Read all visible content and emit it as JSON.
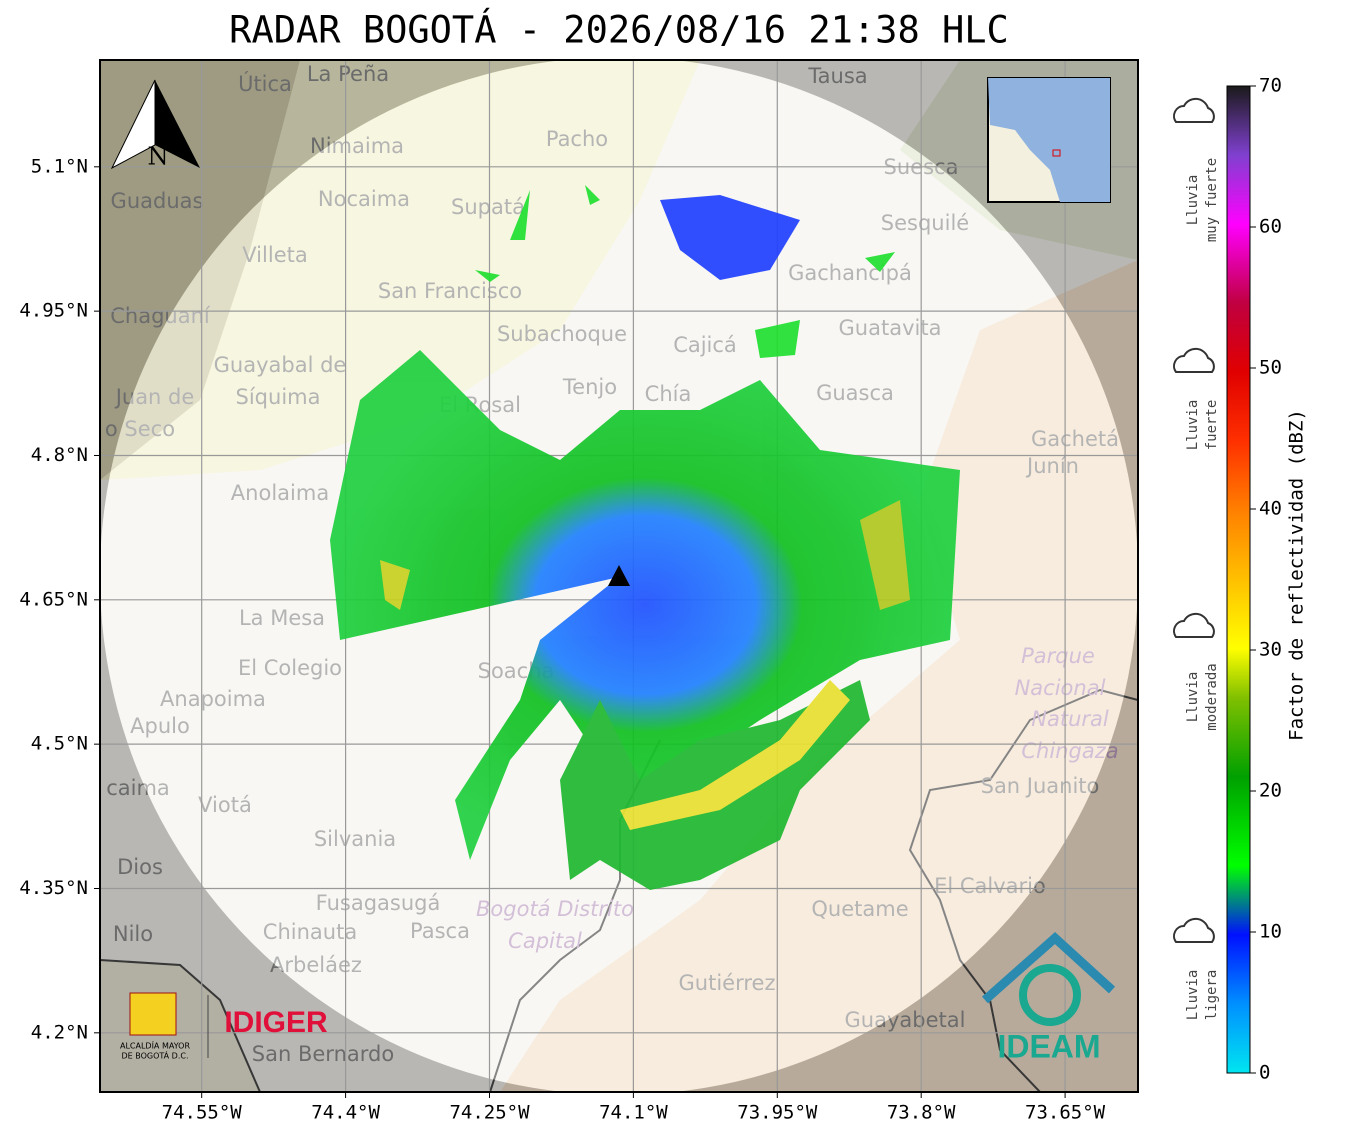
{
  "title": "RADAR BOGOTÁ - 2026/08/16 21:38 HLC",
  "map": {
    "xlim": [
      -74.656,
      -73.574
    ],
    "ylim": [
      4.1385,
      5.211
    ],
    "xticks": [
      {
        "value": -74.55,
        "label": "74.55°W"
      },
      {
        "value": -74.4,
        "label": "74.4°W"
      },
      {
        "value": -74.25,
        "label": "74.25°W"
      },
      {
        "value": -74.1,
        "label": "74.1°W"
      },
      {
        "value": -73.95,
        "label": "73.95°W"
      },
      {
        "value": -73.8,
        "label": "73.8°W"
      },
      {
        "value": -73.65,
        "label": "73.65°W"
      }
    ],
    "yticks": [
      {
        "value": 5.1,
        "label": "5.1°N"
      },
      {
        "value": 4.95,
        "label": "4.95°N"
      },
      {
        "value": 4.8,
        "label": "4.8°N"
      },
      {
        "value": 4.65,
        "label": "4.65°N"
      },
      {
        "value": 4.5,
        "label": "4.5°N"
      },
      {
        "value": 4.35,
        "label": "4.35°N"
      },
      {
        "value": 4.2,
        "label": "4.2°N"
      }
    ],
    "places": [
      "Útica",
      "La Peña",
      "Tausa",
      "Pacho",
      "Nimaima",
      "Guaduas",
      "Nocaima",
      "Supatá",
      "Suesca",
      "Sesquilé",
      "Villeta",
      "Gachancipá",
      "San Francisco",
      "Chaguaní",
      "Guatavita",
      "Subachoque",
      "Cajicá",
      "Guayabal de",
      "Síquima",
      "Tenjo",
      "Chía",
      "Guasca",
      "El Rosal",
      "Juan de",
      "o Seco",
      "Gachetá",
      "Junín",
      "Anolaima",
      "La Mesa",
      "El Colegio",
      "Soacha",
      "Anapoima",
      "Apulo",
      "San Juanito",
      "caima",
      "Viotá",
      "Silvania",
      "Dios",
      "El Calvario",
      "Fusagasugá",
      "Quetame",
      "Nilo",
      "Chinauta",
      "Pasca",
      "Arbeláez",
      "Gutiérrez",
      "Guayabetal",
      "San Bernardo"
    ],
    "areas": [
      "Bogotá Distrito",
      "Capital",
      "Parque",
      "Nacional",
      "Natural",
      "Chingaza"
    ],
    "north": "N"
  },
  "colorbar": {
    "label": "Factor de reflectividad (dBZ)",
    "lim": [
      0,
      70
    ],
    "ticks": [
      0,
      10,
      20,
      30,
      40,
      50,
      60,
      70
    ]
  },
  "legend": [
    [
      "Lluvia",
      "muy fuerte"
    ],
    [
      "Lluvia",
      "fuerte"
    ],
    [
      "Lluvia",
      "moderada"
    ],
    [
      "Lluvia",
      "ligera"
    ]
  ],
  "logos": {
    "alcaldia": [
      "ALCALDÍA MAYOR",
      "DE BOGOTÁ D.C."
    ],
    "idiger": "IDIGER",
    "ideam": "IDEAM"
  }
}
